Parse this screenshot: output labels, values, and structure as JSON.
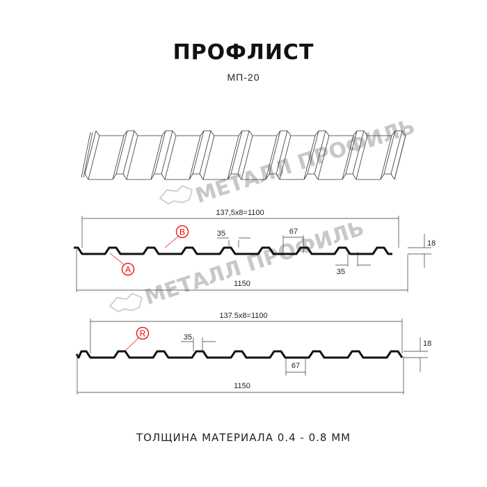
{
  "title": "ПРОФЛИСТ",
  "subtitle": "МП-20",
  "footer": "ТОЛЩИНА МАТЕРИАЛА 0.4 - 0.8 ММ",
  "watermark": "МЕТАЛЛ ПРОФИЛЬ",
  "colors": {
    "profile": "#111111",
    "callout": "#e00000",
    "watermark": "#c8c8c8"
  },
  "profile_1": {
    "pitch_label": "137,5x8=1100",
    "width_label": "1150",
    "rib_top_label": "35",
    "rib_bottom_label": "35",
    "valley_label": "67",
    "height_label": "18",
    "callouts": [
      "B",
      "A"
    ]
  },
  "profile_2": {
    "pitch_label": "137.5x8=1100",
    "width_label": "1150",
    "rib_top_label": "35",
    "valley_label": "67",
    "height_label": "18",
    "callouts": [
      "R"
    ]
  }
}
